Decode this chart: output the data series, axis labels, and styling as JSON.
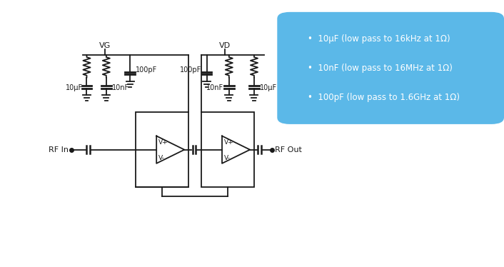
{
  "bg_color": "#ffffff",
  "cc": "#1a1a1a",
  "box_color": "#5bb8e8",
  "box_text_color": "#ffffff",
  "bullet_lines": [
    "10μF (low pass to 16kHz at 1Ω)",
    "10nF (low pass to 16MHz at 1Ω)",
    "100pF (low pass to 1.6GHz at 1Ω)"
  ],
  "vg_label": "VG",
  "vd_label": "VD",
  "rf_in_label": "RF In",
  "rf_out_label": "RF Out",
  "vplus_label": "V+",
  "vminus_label": "V-",
  "cap_label_10uF_L": "10μF",
  "cap_label_10nF_L": "10nF",
  "cap_label_100pF_L": "100pF",
  "cap_label_100pF_R": "100pF",
  "cap_label_10nF_R": "10nF",
  "cap_label_10uF_R": "10μF",
  "lw": 1.3,
  "xlim": [
    0,
    14
  ],
  "ylim": [
    0,
    9
  ]
}
